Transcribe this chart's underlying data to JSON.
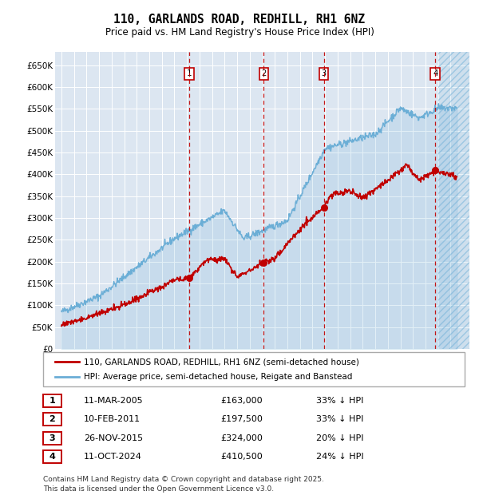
{
  "title": "110, GARLANDS ROAD, REDHILL, RH1 6NZ",
  "subtitle": "Price paid vs. HM Land Registry's House Price Index (HPI)",
  "ylim": [
    0,
    680000
  ],
  "yticks": [
    0,
    50000,
    100000,
    150000,
    200000,
    250000,
    300000,
    350000,
    400000,
    450000,
    500000,
    550000,
    600000,
    650000
  ],
  "ytick_labels": [
    "£0",
    "£50K",
    "£100K",
    "£150K",
    "£200K",
    "£250K",
    "£300K",
    "£350K",
    "£400K",
    "£450K",
    "£500K",
    "£550K",
    "£600K",
    "£650K"
  ],
  "xlim_start": 1994.5,
  "xlim_end": 2027.5,
  "hpi_color": "#6baed6",
  "price_color": "#c00000",
  "dashed_line_color": "#c00000",
  "background_color": "#dce6f1",
  "sale_dates": [
    2005.19,
    2011.11,
    2015.9,
    2024.78
  ],
  "sale_prices": [
    163000,
    197500,
    324000,
    410500
  ],
  "sale_labels": [
    "1",
    "2",
    "3",
    "4"
  ],
  "legend_label_price": "110, GARLANDS ROAD, REDHILL, RH1 6NZ (semi-detached house)",
  "legend_label_hpi": "HPI: Average price, semi-detached house, Reigate and Banstead",
  "table_rows": [
    [
      "1",
      "11-MAR-2005",
      "£163,000",
      "33% ↓ HPI"
    ],
    [
      "2",
      "10-FEB-2011",
      "£197,500",
      "33% ↓ HPI"
    ],
    [
      "3",
      "26-NOV-2015",
      "£324,000",
      "20% ↓ HPI"
    ],
    [
      "4",
      "11-OCT-2024",
      "£410,500",
      "24% ↓ HPI"
    ]
  ],
  "footer": "Contains HM Land Registry data © Crown copyright and database right 2025.\nThis data is licensed under the Open Government Licence v3.0."
}
